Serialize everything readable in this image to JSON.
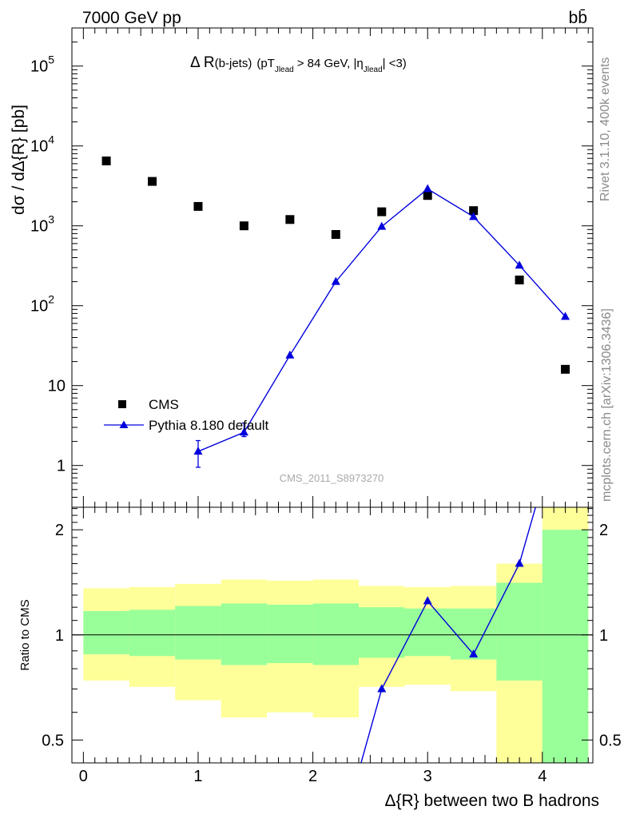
{
  "header": {
    "energy_label": "7000 GeV pp",
    "process_label": "bb̄"
  },
  "side_labels": {
    "rivet": "Rivet 3.1.10,  400k events",
    "mcplots": "mcplots.cern.ch [arXiv:1306.3436]"
  },
  "watermark": "CMS_2011_S8973270",
  "chart_data": [
    {
      "type": "scatter",
      "title_parts": {
        "delta": "Δ R",
        "bjets": "(b-jets)",
        "pt": "(pT",
        "jlead1": "Jlead",
        "cut": ">  84 GeV, |η",
        "jlead2": "Jlead",
        "tail": "| <3)"
      },
      "ylabel": "dσ / dΔ{R} [pb]",
      "yscale": "log",
      "ylim": [
        0.3,
        300000
      ],
      "xlim": [
        -0.1,
        4.44
      ],
      "y_tick_labels": [
        {
          "value": 1,
          "label": "1"
        },
        {
          "value": 10,
          "label": "10"
        },
        {
          "value": 100,
          "label": "10",
          "exp": "2"
        },
        {
          "value": 1000,
          "label": "10",
          "exp": "3"
        },
        {
          "value": 10000,
          "label": "10",
          "exp": "4"
        },
        {
          "value": 100000,
          "label": "10",
          "exp": "5"
        }
      ],
      "legend_position": "bottom-left",
      "series": [
        {
          "name": "CMS",
          "marker": "square",
          "color": "#000000",
          "x": [
            0.2,
            0.6,
            1.0,
            1.4,
            1.8,
            2.2,
            2.6,
            3.0,
            3.4,
            3.8,
            4.2
          ],
          "y": [
            6500,
            3600,
            1750,
            1000,
            1200,
            780,
            1500,
            2400,
            1550,
            210,
            16
          ]
        },
        {
          "name": "Pythia 8.180 default",
          "marker": "triangle",
          "color": "#0000dd",
          "x": [
            1.0,
            1.4,
            1.8,
            2.2,
            2.6,
            3.0,
            3.4,
            3.8,
            4.2
          ],
          "y": [
            1.5,
            2.6,
            24,
            200,
            980,
            2900,
            1300,
            320,
            73
          ],
          "yerr_low": [
            0.55,
            0.3,
            0,
            0,
            0,
            0,
            0,
            0,
            0
          ],
          "yerr_high": [
            0.55,
            0.8,
            0,
            0,
            0,
            0,
            0,
            0,
            0
          ]
        }
      ]
    },
    {
      "type": "line",
      "ylabel": "Ratio to CMS",
      "yscale": "log",
      "ylim": [
        0.43,
        2.32
      ],
      "xlim": [
        -0.1,
        4.44
      ],
      "xlabel": "Δ{R} between two B hadrons",
      "reference_line": 1,
      "y_tick_labels": [
        {
          "value": 0.5,
          "label": "0.5"
        },
        {
          "value": 1,
          "label": "1"
        },
        {
          "value": 2,
          "label": "2"
        }
      ],
      "x_tick_labels": [
        {
          "value": 0,
          "label": "0"
        },
        {
          "value": 1,
          "label": "1"
        },
        {
          "value": 2,
          "label": "2"
        },
        {
          "value": 3,
          "label": "3"
        },
        {
          "value": 4,
          "label": "4"
        }
      ],
      "bin_edges": [
        0,
        0.4,
        0.8,
        1.2,
        1.6,
        2.0,
        2.4,
        2.8,
        3.2,
        3.6,
        4.0,
        4.4
      ],
      "band_outer": {
        "color": "#ffff99",
        "low": [
          0.74,
          0.71,
          0.65,
          0.58,
          0.6,
          0.58,
          0.71,
          0.72,
          0.69,
          0.4,
          0.4
        ],
        "high": [
          1.36,
          1.37,
          1.4,
          1.44,
          1.43,
          1.44,
          1.38,
          1.37,
          1.38,
          1.6,
          2.4
        ]
      },
      "band_inner": {
        "color": "#99ff99",
        "low": [
          0.88,
          0.87,
          0.85,
          0.82,
          0.83,
          0.82,
          0.86,
          0.87,
          0.85,
          0.74,
          0.4
        ],
        "high": [
          1.17,
          1.18,
          1.21,
          1.23,
          1.22,
          1.23,
          1.2,
          1.19,
          1.19,
          1.41,
          2.0
        ]
      },
      "series": [
        {
          "name": "Pythia 8.180 default",
          "color": "#0000dd",
          "x": [
            2.6,
            3.0,
            3.4,
            3.8,
            4.2
          ],
          "y": [
            0.7,
            1.25,
            0.88,
            1.6,
            4.6
          ],
          "line_start": {
            "x": 2.42,
            "y": 0.43
          }
        }
      ]
    }
  ]
}
